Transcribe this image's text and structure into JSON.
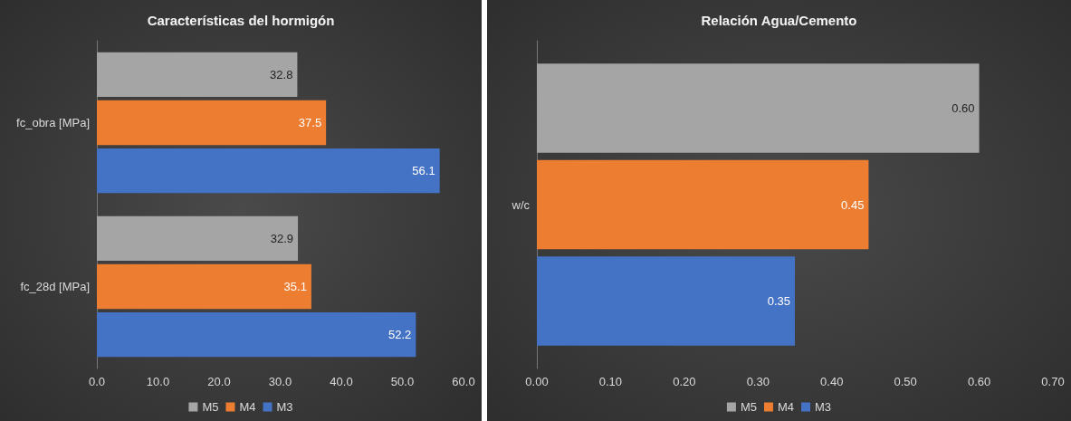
{
  "chart_data": [
    {
      "type": "bar",
      "orientation": "horizontal",
      "title": "Características del hormigón",
      "categories": [
        "fc_obra [MPa]",
        "fc_28d [MPa]"
      ],
      "series": [
        {
          "name": "M5",
          "color": "#a5a5a5",
          "values": [
            32.8,
            32.9
          ]
        },
        {
          "name": "M4",
          "color": "#ed7d31",
          "values": [
            37.5,
            35.1
          ]
        },
        {
          "name": "M3",
          "color": "#4472c4",
          "values": [
            56.1,
            52.2
          ]
        }
      ],
      "xlim": [
        0,
        60
      ],
      "xticks": [
        {
          "value": 0,
          "label": "0.0"
        },
        {
          "value": 10,
          "label": "10.0"
        },
        {
          "value": 20,
          "label": "20.0"
        },
        {
          "value": 30,
          "label": "30.0"
        },
        {
          "value": 40,
          "label": "40.0"
        },
        {
          "value": 50,
          "label": "50.0"
        },
        {
          "value": 60,
          "label": "60.0"
        }
      ],
      "data_labels": true,
      "legend": "bottom",
      "grid": false
    },
    {
      "type": "bar",
      "orientation": "horizontal",
      "title": "Relación Agua/Cemento",
      "categories": [
        "w/c"
      ],
      "series": [
        {
          "name": "M5",
          "color": "#a5a5a5",
          "values": [
            0.6
          ],
          "value_labels": [
            "0.60"
          ]
        },
        {
          "name": "M4",
          "color": "#ed7d31",
          "values": [
            0.45
          ],
          "value_labels": [
            "0.45"
          ]
        },
        {
          "name": "M3",
          "color": "#4472c4",
          "values": [
            0.35
          ],
          "value_labels": [
            "0.35"
          ]
        }
      ],
      "xlim": [
        0,
        0.7
      ],
      "xticks": [
        {
          "value": 0,
          "label": "0.00"
        },
        {
          "value": 0.1,
          "label": "0.10"
        },
        {
          "value": 0.2,
          "label": "0.20"
        },
        {
          "value": 0.3,
          "label": "0.30"
        },
        {
          "value": 0.4,
          "label": "0.40"
        },
        {
          "value": 0.5,
          "label": "0.50"
        },
        {
          "value": 0.6,
          "label": "0.60"
        },
        {
          "value": 0.7,
          "label": "0.70"
        }
      ],
      "legend": "bottom",
      "grid": false
    }
  ]
}
